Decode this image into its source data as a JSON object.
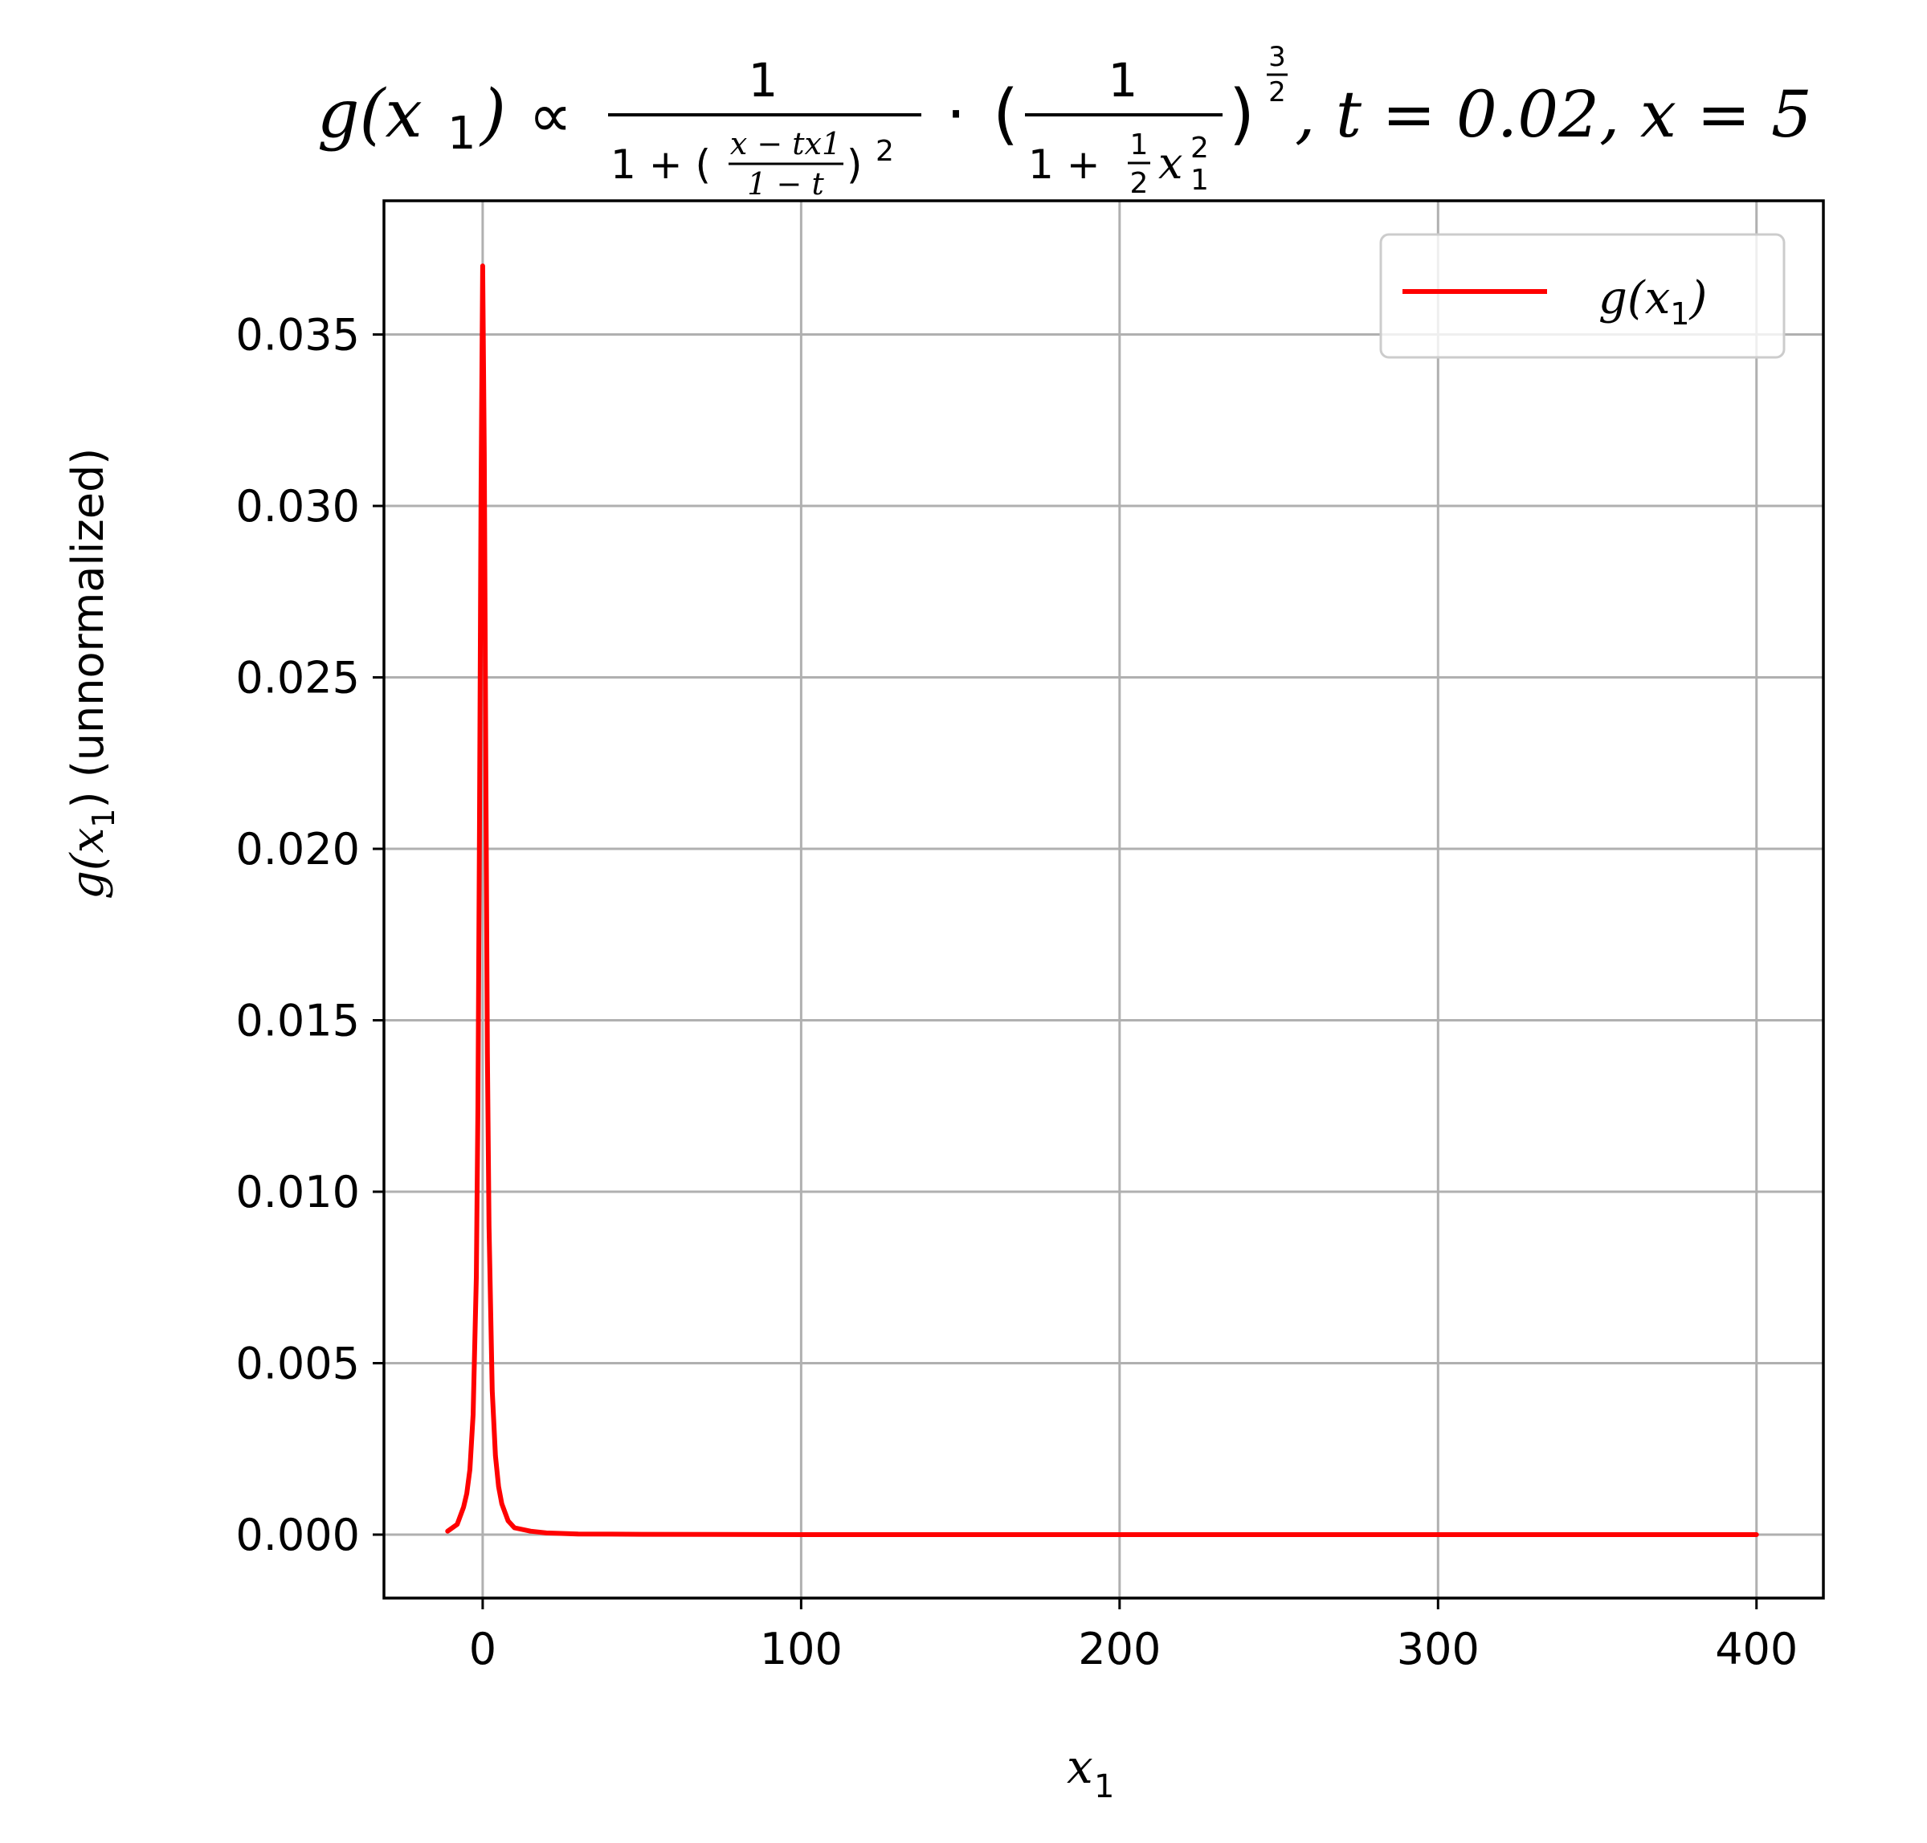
{
  "chart_data": {
    "type": "line",
    "title": {
      "lhs": "g(x",
      "lhs_sub": "1",
      "lhs_close": ")",
      "propto": "∝",
      "frac1_num": "1",
      "frac1_den_prefix": "1 + (",
      "inner_num": "x − tx1",
      "inner_den": "1 − t",
      "frac1_den_suffix": ")",
      "frac1_den_sup": "2",
      "dot": "·",
      "open_paren": "(",
      "frac2_num": "1",
      "frac2_den_prefix": "1 +",
      "half_num": "1",
      "half_den": "2",
      "frac2_den_var": "x",
      "frac2_den_sub": "1",
      "frac2_den_sup": "2",
      "close_paren": ")",
      "exp_num": "3",
      "exp_den": "2",
      "params": ", t = 0.02, x = 5"
    },
    "xlabel": {
      "var": "x",
      "sub": "1"
    },
    "ylabel": {
      "prefix": "g(x",
      "sub": "1",
      "suffix": ") (unnormalized)"
    },
    "xlim": [
      -31,
      421
    ],
    "ylim": [
      -0.00185,
      0.0389
    ],
    "xticks": [
      0,
      100,
      200,
      300,
      400
    ],
    "xtick_labels": [
      "0",
      "100",
      "200",
      "300",
      "400"
    ],
    "yticks": [
      0.0,
      0.005,
      0.01,
      0.015,
      0.02,
      0.025,
      0.03,
      0.035
    ],
    "ytick_labels": [
      "0.000",
      "0.005",
      "0.010",
      "0.015",
      "0.020",
      "0.025",
      "0.030",
      "0.035"
    ],
    "grid": true,
    "legend_position": "upper-right",
    "series": [
      {
        "name": {
          "prefix": "g(x",
          "sub": "1",
          "suffix": ")"
        },
        "color": "#ff0000",
        "x": [
          -11,
          -8,
          -6,
          -5,
          -4,
          -3,
          -2,
          -1.5,
          -1,
          -0.5,
          0,
          0.5,
          1,
          1.5,
          2,
          3,
          4,
          5,
          6,
          8,
          10,
          15,
          20,
          30,
          50,
          100,
          200,
          300,
          400
        ],
        "y": [
          0.0001,
          0.0003,
          0.0008,
          0.0012,
          0.0019,
          0.0035,
          0.0075,
          0.0125,
          0.0205,
          0.0305,
          0.037,
          0.0315,
          0.022,
          0.014,
          0.009,
          0.0042,
          0.0023,
          0.0014,
          0.0009,
          0.0004,
          0.0002,
          0.0001,
          5e-05,
          2e-05,
          1e-05,
          0.0,
          0.0,
          0.0,
          0.0
        ]
      }
    ]
  }
}
